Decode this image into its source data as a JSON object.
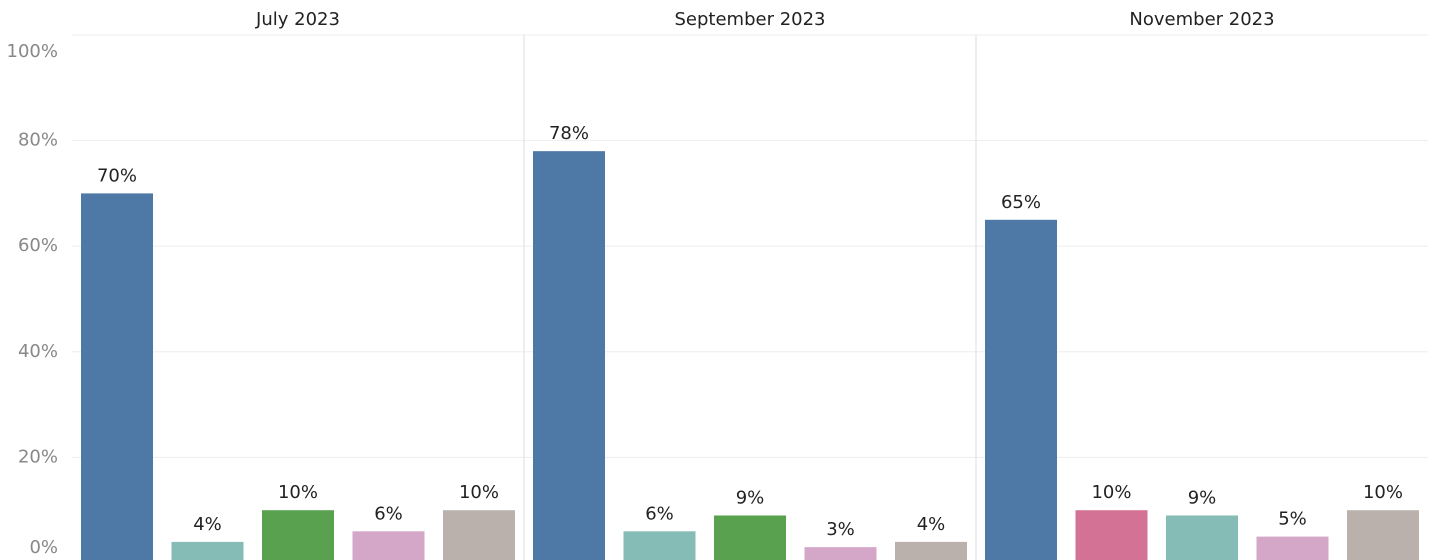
{
  "chart_data": {
    "type": "bar",
    "ylim": [
      0,
      100
    ],
    "yticks": [
      {
        "value": 0,
        "label": "0%"
      },
      {
        "value": 20,
        "label": "20%"
      },
      {
        "value": 40,
        "label": "40%"
      },
      {
        "value": 60,
        "label": "60%"
      },
      {
        "value": 80,
        "label": "80%"
      },
      {
        "value": 100,
        "label": "100%"
      }
    ],
    "grid": true,
    "facets": [
      {
        "title": "July 2023",
        "values": [
          70,
          4,
          10,
          6,
          10
        ],
        "value_labels": [
          "70%",
          "4%",
          "10%",
          "6%",
          "10%"
        ],
        "colors": [
          "#4e79a7",
          "#86bcb6",
          "#59a14f",
          "#d4a6c8",
          "#bab0ac"
        ]
      },
      {
        "title": "September 2023",
        "values": [
          78,
          6,
          9,
          3,
          4
        ],
        "value_labels": [
          "78%",
          "6%",
          "9%",
          "3%",
          "4%"
        ],
        "colors": [
          "#4e79a7",
          "#86bcb6",
          "#59a14f",
          "#d4a6c8",
          "#bab0ac"
        ]
      },
      {
        "title": "November 2023",
        "values": [
          65,
          10,
          9,
          5,
          10
        ],
        "value_labels": [
          "65%",
          "10%",
          "9%",
          "5%",
          "10%"
        ],
        "colors": [
          "#4e79a7",
          "#d37295",
          "#86bcb6",
          "#d4a6c8",
          "#bab0ac"
        ]
      }
    ]
  }
}
